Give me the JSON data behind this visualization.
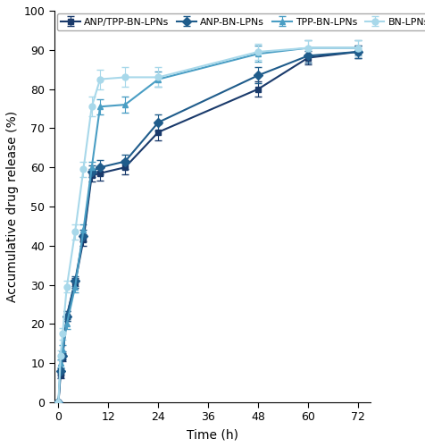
{
  "series": [
    {
      "label": "ANP/TPP-BN-LPNs",
      "color": "#1a3a6b",
      "marker": "s",
      "x": [
        0,
        0.5,
        1,
        2,
        4,
        6,
        8,
        10,
        16,
        24,
        48,
        60,
        72
      ],
      "y": [
        0,
        7.0,
        11.5,
        22.0,
        30.5,
        41.5,
        58.0,
        58.5,
        60.0,
        69.0,
        80.0,
        88.0,
        89.5
      ],
      "yerr": [
        0,
        0.8,
        1.0,
        1.2,
        1.2,
        1.5,
        1.5,
        1.8,
        1.8,
        2.0,
        2.0,
        1.8,
        1.5
      ]
    },
    {
      "label": "ANP-BN-LPNs",
      "color": "#1f5c8b",
      "marker": "D",
      "x": [
        0,
        0.5,
        1,
        2,
        4,
        6,
        8,
        10,
        16,
        24,
        48,
        60,
        72
      ],
      "y": [
        0,
        8.0,
        12.0,
        22.0,
        31.0,
        42.5,
        59.0,
        60.0,
        61.5,
        71.5,
        83.5,
        88.5,
        89.5
      ],
      "yerr": [
        0,
        0.8,
        1.0,
        1.2,
        1.3,
        1.5,
        1.5,
        1.8,
        1.8,
        2.0,
        2.0,
        1.8,
        1.5
      ]
    },
    {
      "label": "TPP-BN-LPNs",
      "color": "#4a9ec4",
      "marker": "^",
      "x": [
        0,
        0.5,
        1,
        2,
        4,
        6,
        8,
        10,
        16,
        24,
        48,
        60,
        72
      ],
      "y": [
        0,
        10.0,
        13.5,
        20.0,
        29.5,
        44.0,
        60.0,
        75.5,
        76.0,
        82.5,
        89.0,
        90.5,
        90.5
      ],
      "yerr": [
        0,
        1.0,
        1.2,
        1.2,
        1.5,
        1.5,
        1.5,
        2.0,
        2.0,
        2.0,
        2.0,
        2.0,
        2.0
      ]
    },
    {
      "label": "BN-LPNs",
      "color": "#a8d8ea",
      "marker": "o",
      "x": [
        0,
        0.5,
        1,
        2,
        4,
        6,
        8,
        10,
        16,
        24,
        48,
        60,
        72
      ],
      "y": [
        0,
        12.0,
        17.5,
        29.5,
        43.5,
        59.5,
        75.5,
        82.5,
        83.0,
        83.0,
        89.5,
        90.5,
        90.5
      ],
      "yerr": [
        0,
        1.2,
        1.5,
        1.5,
        2.0,
        2.0,
        2.5,
        2.5,
        2.5,
        2.5,
        2.0,
        2.0,
        2.0
      ]
    }
  ],
  "xlabel": "Time (h)",
  "ylabel": "Accumulative drug release (%)",
  "xlim": [
    -1,
    75
  ],
  "ylim": [
    0,
    100
  ],
  "xticks": [
    0,
    12,
    24,
    36,
    48,
    60,
    72
  ],
  "yticks": [
    0,
    10,
    20,
    30,
    40,
    50,
    60,
    70,
    80,
    90,
    100
  ],
  "legend_fontsize": 7.8,
  "axis_fontsize": 10,
  "tick_fontsize": 9,
  "linewidth": 1.5,
  "markersize": 5,
  "capsize": 3,
  "background_color": "#ffffff"
}
